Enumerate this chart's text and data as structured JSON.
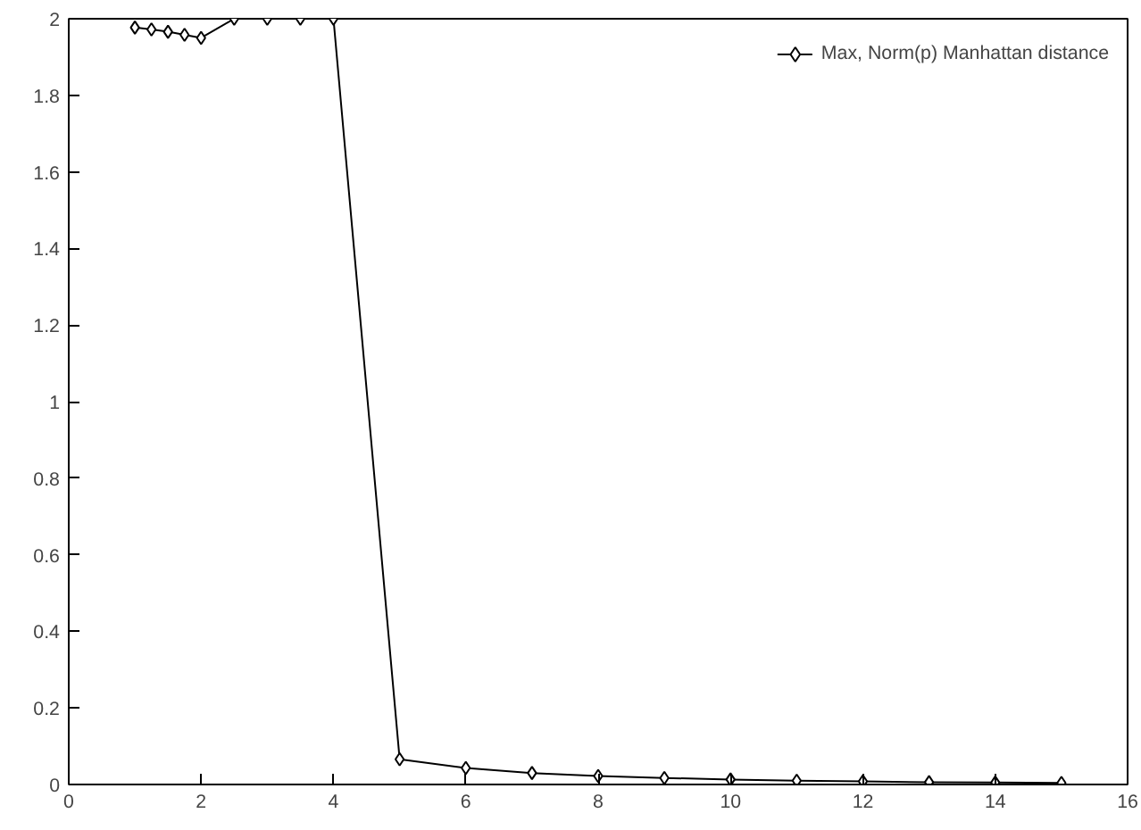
{
  "chart_data": {
    "type": "line",
    "x": [
      1,
      1.25,
      1.5,
      1.75,
      2,
      2.5,
      3,
      3.5,
      4,
      5,
      6,
      7,
      8,
      9,
      10,
      11,
      12,
      13,
      14,
      15
    ],
    "series": [
      {
        "name": "Max, Norm(p) Manhattan distance",
        "color": "#000000",
        "values": [
          1.977,
          1.972,
          1.966,
          1.958,
          1.95,
          2,
          2,
          2,
          2,
          0.066,
          0.043,
          0.03,
          0.022,
          0.017,
          0.013,
          0.01,
          0.008,
          0.006,
          0.005,
          0.004
        ]
      }
    ],
    "xlim": [
      0,
      16
    ],
    "ylim": [
      0,
      2
    ],
    "xticks": [
      0,
      2,
      4,
      6,
      8,
      10,
      12,
      14,
      16
    ],
    "yticks": [
      0,
      0.2,
      0.4,
      0.6,
      0.8,
      1,
      1.2,
      1.4,
      1.6,
      1.8,
      2
    ],
    "marker": "diamond",
    "legend": "top right",
    "grid": false
  }
}
